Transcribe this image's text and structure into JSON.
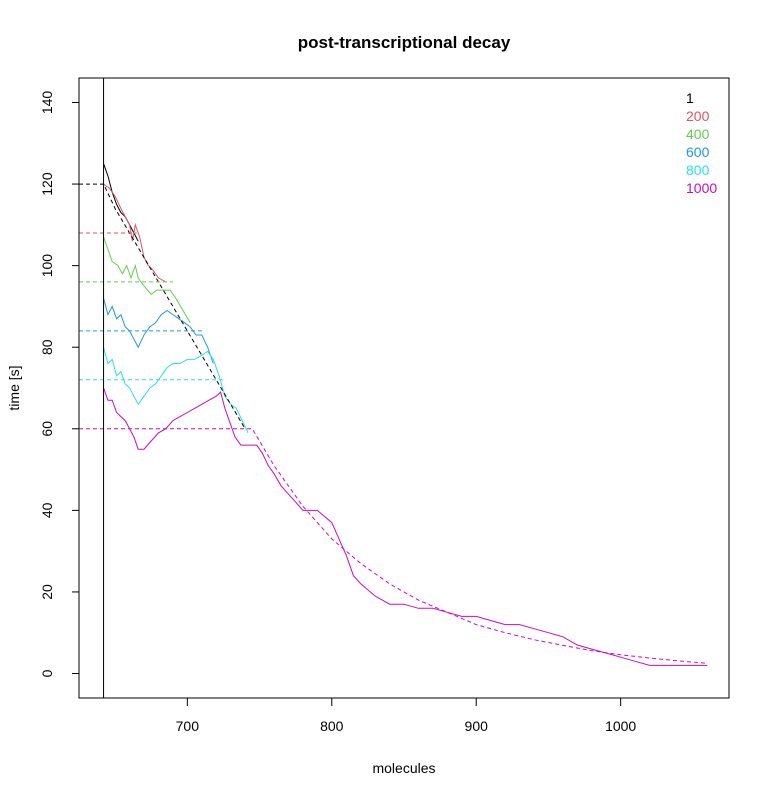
{
  "chart_data": {
    "type": "line",
    "title": "post-transcriptional decay",
    "xlabel": "molecules",
    "ylabel": "time [s]",
    "xlim": [
      625,
      1075
    ],
    "ylim": [
      -6,
      146
    ],
    "x_ticks": [
      700,
      800,
      900,
      1000
    ],
    "y_ticks": [
      0,
      20,
      40,
      60,
      80,
      100,
      120,
      140
    ],
    "x_tick_labels": [
      "700",
      "800",
      "900",
      "1000"
    ],
    "y_tick_labels": [
      "0",
      "20",
      "40",
      "60",
      "80",
      "100",
      "120",
      "140"
    ],
    "grid": false,
    "legend_position": "top-right",
    "vertical_line_x": 642,
    "legend": [
      {
        "label": "1",
        "color": "#000000"
      },
      {
        "label": "200",
        "color": "#DF536B"
      },
      {
        "label": "400",
        "color": "#61D04F"
      },
      {
        "label": "600",
        "color": "#2297E6"
      },
      {
        "label": "800",
        "color": "#28E2E5"
      },
      {
        "label": "1000",
        "color": "#CD0BBC"
      }
    ],
    "series": [
      {
        "color": "#000000",
        "style": "solid",
        "x": [
          642,
          645,
          648,
          651,
          654,
          657,
          660,
          663,
          666
        ],
        "y": [
          125,
          122,
          118,
          115,
          113,
          112,
          110,
          108,
          106
        ]
      },
      {
        "color": "#DF536B",
        "style": "solid",
        "x": [
          642,
          646,
          650,
          654,
          657,
          660,
          662,
          664,
          667,
          670,
          673,
          676,
          680,
          685
        ],
        "y": [
          120,
          119,
          117,
          114,
          112,
          110,
          106,
          110,
          107,
          102,
          100,
          99,
          97,
          96
        ]
      },
      {
        "color": "#61D04F",
        "style": "solid",
        "x": [
          642,
          645,
          648,
          652,
          655,
          658,
          661,
          664,
          666,
          670,
          675,
          679,
          683,
          688,
          692,
          697,
          702
        ],
        "y": [
          107,
          104,
          101,
          100,
          98,
          100,
          97,
          100,
          97,
          95,
          93,
          94,
          94,
          94,
          92,
          89,
          86
        ]
      },
      {
        "color": "#2297E6",
        "style": "solid",
        "x": [
          642,
          645,
          648,
          651,
          654,
          657,
          660,
          663,
          666,
          670,
          674,
          678,
          682,
          686,
          690,
          694,
          698,
          702,
          706,
          710,
          714,
          718
        ],
        "y": [
          92,
          88,
          90,
          87,
          88,
          85,
          84,
          82,
          80,
          83,
          85,
          86,
          88,
          89,
          88,
          87,
          86,
          85,
          83,
          83,
          80,
          76
        ]
      },
      {
        "color": "#28E2E5",
        "style": "solid",
        "x": [
          642,
          645,
          648,
          651,
          654,
          657,
          660,
          663,
          666,
          670,
          674,
          678,
          682,
          686,
          690,
          695,
          700,
          705,
          710,
          714,
          718,
          722,
          726,
          730,
          734,
          738,
          742
        ],
        "y": [
          80,
          76,
          77,
          73,
          74,
          71,
          70,
          68,
          66,
          68,
          70,
          71,
          73,
          75,
          76,
          76,
          77,
          77,
          78,
          79,
          77,
          73,
          68,
          66,
          65,
          62,
          59
        ]
      },
      {
        "color": "#CD0BBC",
        "style": "solid",
        "x": [
          642,
          645,
          648,
          651,
          654,
          657,
          660,
          663,
          666,
          670,
          675,
          680,
          685,
          690,
          695,
          700,
          705,
          710,
          715,
          720,
          723,
          726,
          729,
          733,
          737,
          742,
          748,
          752,
          756,
          760,
          765,
          770,
          775,
          780,
          790,
          800,
          805,
          810,
          815,
          820,
          830,
          840,
          850,
          860,
          870,
          880,
          890,
          900,
          910,
          920,
          930,
          940,
          950,
          960,
          970,
          980,
          990,
          1000,
          1010,
          1020,
          1040,
          1060
        ],
        "y": [
          70,
          67,
          67,
          64,
          63,
          62,
          60,
          58,
          55,
          55,
          57,
          59,
          60,
          62,
          63,
          64,
          65,
          66,
          67,
          68,
          69,
          65,
          62,
          58,
          56,
          56,
          56,
          54,
          51,
          49,
          46,
          44,
          42,
          40,
          40,
          37,
          33,
          29,
          24,
          22,
          19,
          17,
          17,
          16,
          16,
          15,
          14,
          14,
          13,
          12,
          12,
          11,
          10,
          9,
          7,
          6,
          5,
          4,
          3,
          2,
          2,
          2
        ]
      },
      {
        "color": "#000000",
        "style": "dashed",
        "x": [
          625,
          642,
          650,
          660,
          670,
          680,
          690,
          700,
          710,
          720,
          730,
          740
        ],
        "y": [
          120,
          120,
          114,
          108,
          102,
          96,
          90,
          84,
          78,
          72,
          66,
          60
        ]
      },
      {
        "color": "#DF536B",
        "style": "dashed",
        "x": [
          625,
          665
        ],
        "y": [
          108,
          108
        ]
      },
      {
        "color": "#61D04F",
        "style": "dashed",
        "x": [
          625,
          690
        ],
        "y": [
          96,
          96
        ]
      },
      {
        "color": "#2297E6",
        "style": "dashed",
        "x": [
          625,
          710
        ],
        "y": [
          84,
          84
        ]
      },
      {
        "color": "#28E2E5",
        "style": "dashed",
        "x": [
          625,
          725
        ],
        "y": [
          72,
          72
        ]
      },
      {
        "color": "#CD0BBC",
        "style": "dashed",
        "x": [
          625,
          745,
          760,
          780,
          800,
          820,
          840,
          860,
          880,
          900,
          920,
          940,
          960,
          980,
          1000,
          1020,
          1040,
          1060
        ],
        "y": [
          60,
          60,
          51,
          41,
          33,
          27,
          22,
          18,
          15,
          12,
          10,
          8.3,
          6.9,
          5.6,
          4.6,
          3.8,
          3.1,
          2.5
        ]
      }
    ]
  }
}
